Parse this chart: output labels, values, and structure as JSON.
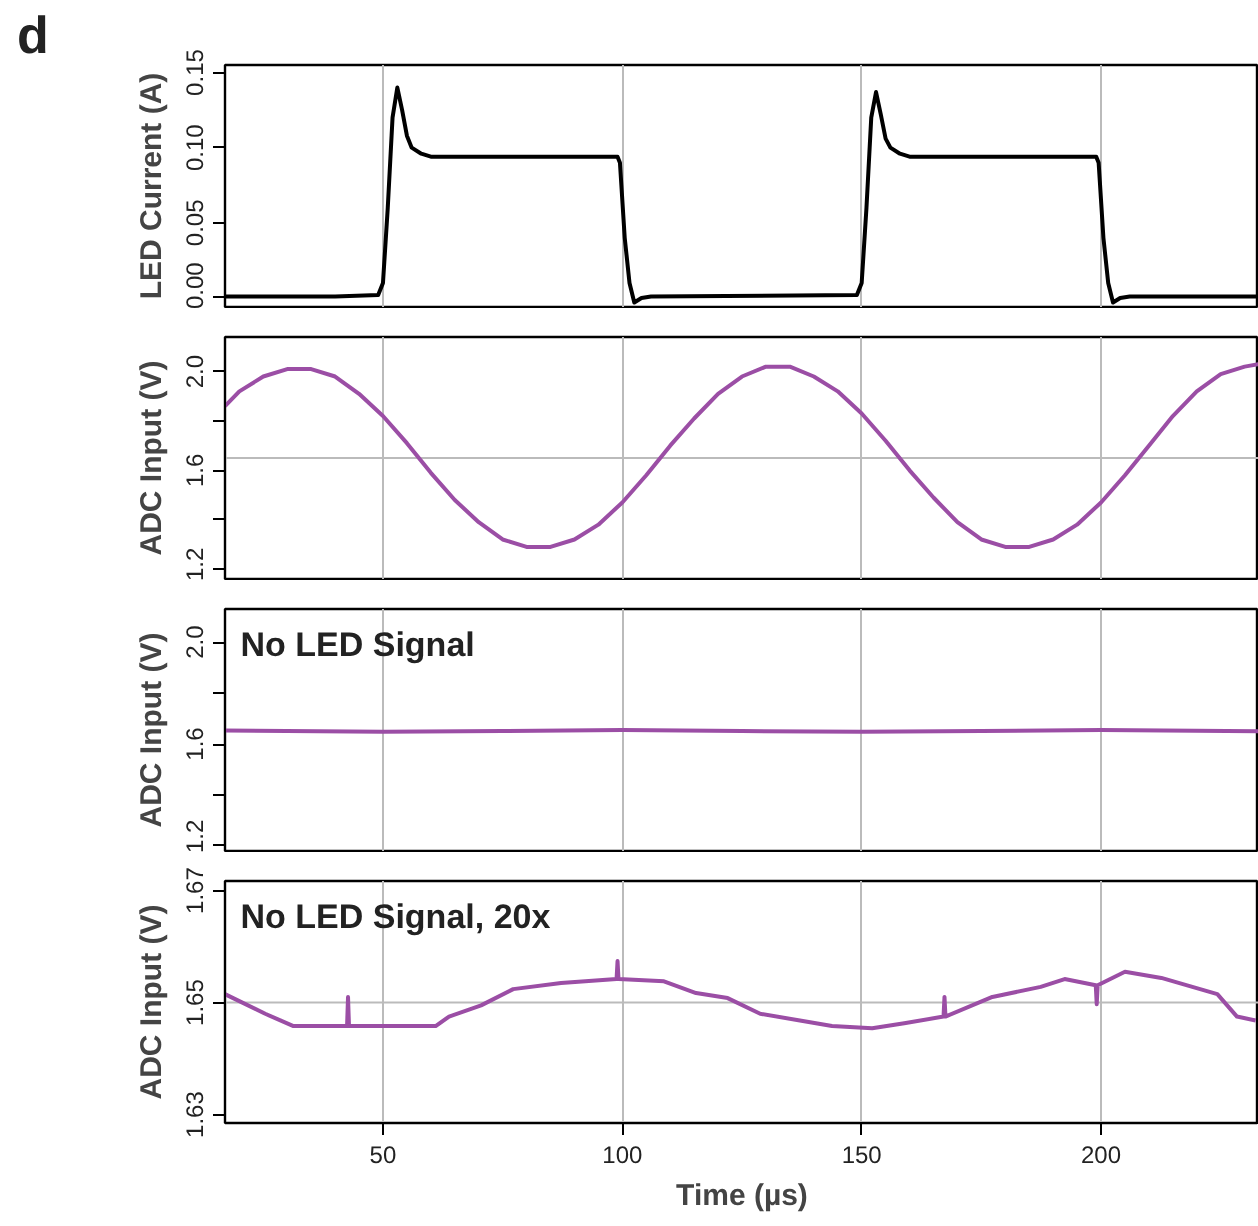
{
  "chart_data": [
    {
      "type": "line",
      "title": "d",
      "ylabel": "LED Current (A)",
      "xlim": [
        17,
        233
      ],
      "xticks": [
        50,
        100,
        150,
        200
      ],
      "ylim": [
        -0.006,
        0.155
      ],
      "yticks": [
        {
          "value": 0,
          "label": "0.00"
        },
        {
          "value": 0.05,
          "label": "0.05"
        },
        {
          "value": 0.1,
          "label": "0.10"
        },
        {
          "value": 0.15,
          "label": "0.15"
        }
      ],
      "grid": "x",
      "tick_labels": "y",
      "x": [
        17,
        40,
        49,
        50,
        51,
        52,
        53,
        54,
        55,
        56,
        58,
        60,
        99,
        99.5,
        100.5,
        101.5,
        102.5,
        104,
        106,
        149,
        150,
        151,
        152,
        153,
        154,
        155,
        156,
        158,
        160,
        199,
        199.5,
        200.5,
        201.5,
        202.5,
        204,
        206,
        233
      ],
      "series": [
        {
          "color": "#000000",
          "values": [
            0.001,
            0.001,
            0.002,
            0.01,
            0.06,
            0.12,
            0.14,
            0.125,
            0.108,
            0.1,
            0.096,
            0.094,
            0.094,
            0.09,
            0.04,
            0.01,
            -0.003,
            0.0,
            0.001,
            0.002,
            0.01,
            0.06,
            0.12,
            0.137,
            0.122,
            0.106,
            0.1,
            0.096,
            0.094,
            0.094,
            0.09,
            0.04,
            0.01,
            -0.003,
            0.0,
            0.001,
            0.001
          ]
        }
      ]
    },
    {
      "type": "line",
      "ylabel": "ADC Input (V)",
      "xlim": [
        17,
        233
      ],
      "xticks": [
        50,
        100,
        150,
        200
      ],
      "ylim": [
        1.16,
        2.14
      ],
      "yticks": [
        {
          "value": 1.2,
          "label": "1.2"
        },
        {
          "value": 1.4,
          "label": null
        },
        {
          "value": 1.6,
          "label": "1.6"
        },
        {
          "value": 1.8,
          "label": null
        },
        {
          "value": 2.0,
          "label": "2.0"
        }
      ],
      "grid": "x",
      "tick_labels": "y",
      "ref_lines": [
        {
          "axis": "y",
          "value": 1.65,
          "color": "#bbbbbb"
        }
      ],
      "x": [
        17,
        20,
        25,
        30,
        35,
        40,
        45,
        50,
        55,
        60,
        65,
        70,
        75,
        80,
        85,
        90,
        95,
        100,
        105,
        110,
        115,
        120,
        125,
        130,
        135,
        140,
        145,
        150,
        155,
        160,
        165,
        170,
        175,
        180,
        185,
        190,
        195,
        200,
        205,
        210,
        215,
        220,
        225,
        230,
        233
      ],
      "series": [
        {
          "color": "#9b4ea5",
          "values": [
            1.86,
            1.92,
            1.98,
            2.01,
            2.01,
            1.98,
            1.91,
            1.82,
            1.71,
            1.59,
            1.48,
            1.39,
            1.32,
            1.29,
            1.29,
            1.32,
            1.38,
            1.47,
            1.58,
            1.7,
            1.81,
            1.91,
            1.98,
            2.02,
            2.02,
            1.98,
            1.92,
            1.83,
            1.72,
            1.6,
            1.49,
            1.39,
            1.32,
            1.29,
            1.29,
            1.32,
            1.38,
            1.47,
            1.58,
            1.7,
            1.82,
            1.92,
            1.99,
            2.02,
            2.03
          ]
        }
      ]
    },
    {
      "type": "line",
      "ylabel": "ADC Input (V)",
      "annotations": [
        "No LED Signal"
      ],
      "xlim": [
        17,
        233
      ],
      "xticks": [
        50,
        100,
        150,
        200
      ],
      "ylim": [
        1.18,
        2.13
      ],
      "yticks": [
        {
          "value": 1.2,
          "label": "1.2"
        },
        {
          "value": 1.4,
          "label": null
        },
        {
          "value": 1.6,
          "label": "1.6"
        },
        {
          "value": 1.8,
          "label": null
        },
        {
          "value": 2.0,
          "label": "2.0"
        }
      ],
      "grid": "x",
      "tick_labels": "y",
      "x": [
        17,
        50,
        75,
        100,
        125,
        150,
        175,
        200,
        233
      ],
      "series": [
        {
          "color": "#9b4ea5",
          "values": [
            1.653,
            1.648,
            1.651,
            1.655,
            1.651,
            1.648,
            1.651,
            1.655,
            1.65
          ]
        }
      ]
    },
    {
      "type": "line",
      "ylabel": "ADC Input (V)",
      "xlabel": "Time (µs)",
      "annotations": [
        "No LED Signal, 20x"
      ],
      "xlim": [
        17,
        233
      ],
      "xticks": [
        50,
        100,
        150,
        200
      ],
      "ylim": [
        1.6285,
        1.6717
      ],
      "yticks": [
        1.63,
        1.65,
        1.67
      ],
      "grid": "x",
      "ref_lines": [
        {
          "axis": "y",
          "value": 1.65,
          "color": "#bbbbbb"
        }
      ],
      "x": [
        17,
        25.4,
        31.3,
        37,
        42.5,
        42.7,
        42.9,
        61,
        63.8,
        70.5,
        77.2,
        87.2,
        98.8,
        99,
        99.2,
        108.7,
        115.4,
        122,
        128.8,
        137.1,
        143.8,
        152.2,
        158.9,
        167.1,
        167.3,
        167.5,
        177.3,
        187.4,
        192.4,
        198.9,
        199.1,
        199.3,
        205,
        212.6,
        224.3,
        228.4,
        232.3
      ],
      "series": [
        {
          "color": "#9b4ea5",
          "values": [
            1.6515,
            1.648,
            1.6458,
            1.6458,
            1.6458,
            1.651,
            1.6458,
            1.6458,
            1.6475,
            1.6495,
            1.6524,
            1.6535,
            1.6542,
            1.6574,
            1.6542,
            1.6538,
            1.6517,
            1.6508,
            1.648,
            1.6468,
            1.6458,
            1.6454,
            1.6463,
            1.6475,
            1.651,
            1.6475,
            1.651,
            1.6528,
            1.6542,
            1.6531,
            1.6497,
            1.6531,
            1.6555,
            1.6544,
            1.6515,
            1.6475,
            1.6468
          ]
        }
      ]
    }
  ]
}
